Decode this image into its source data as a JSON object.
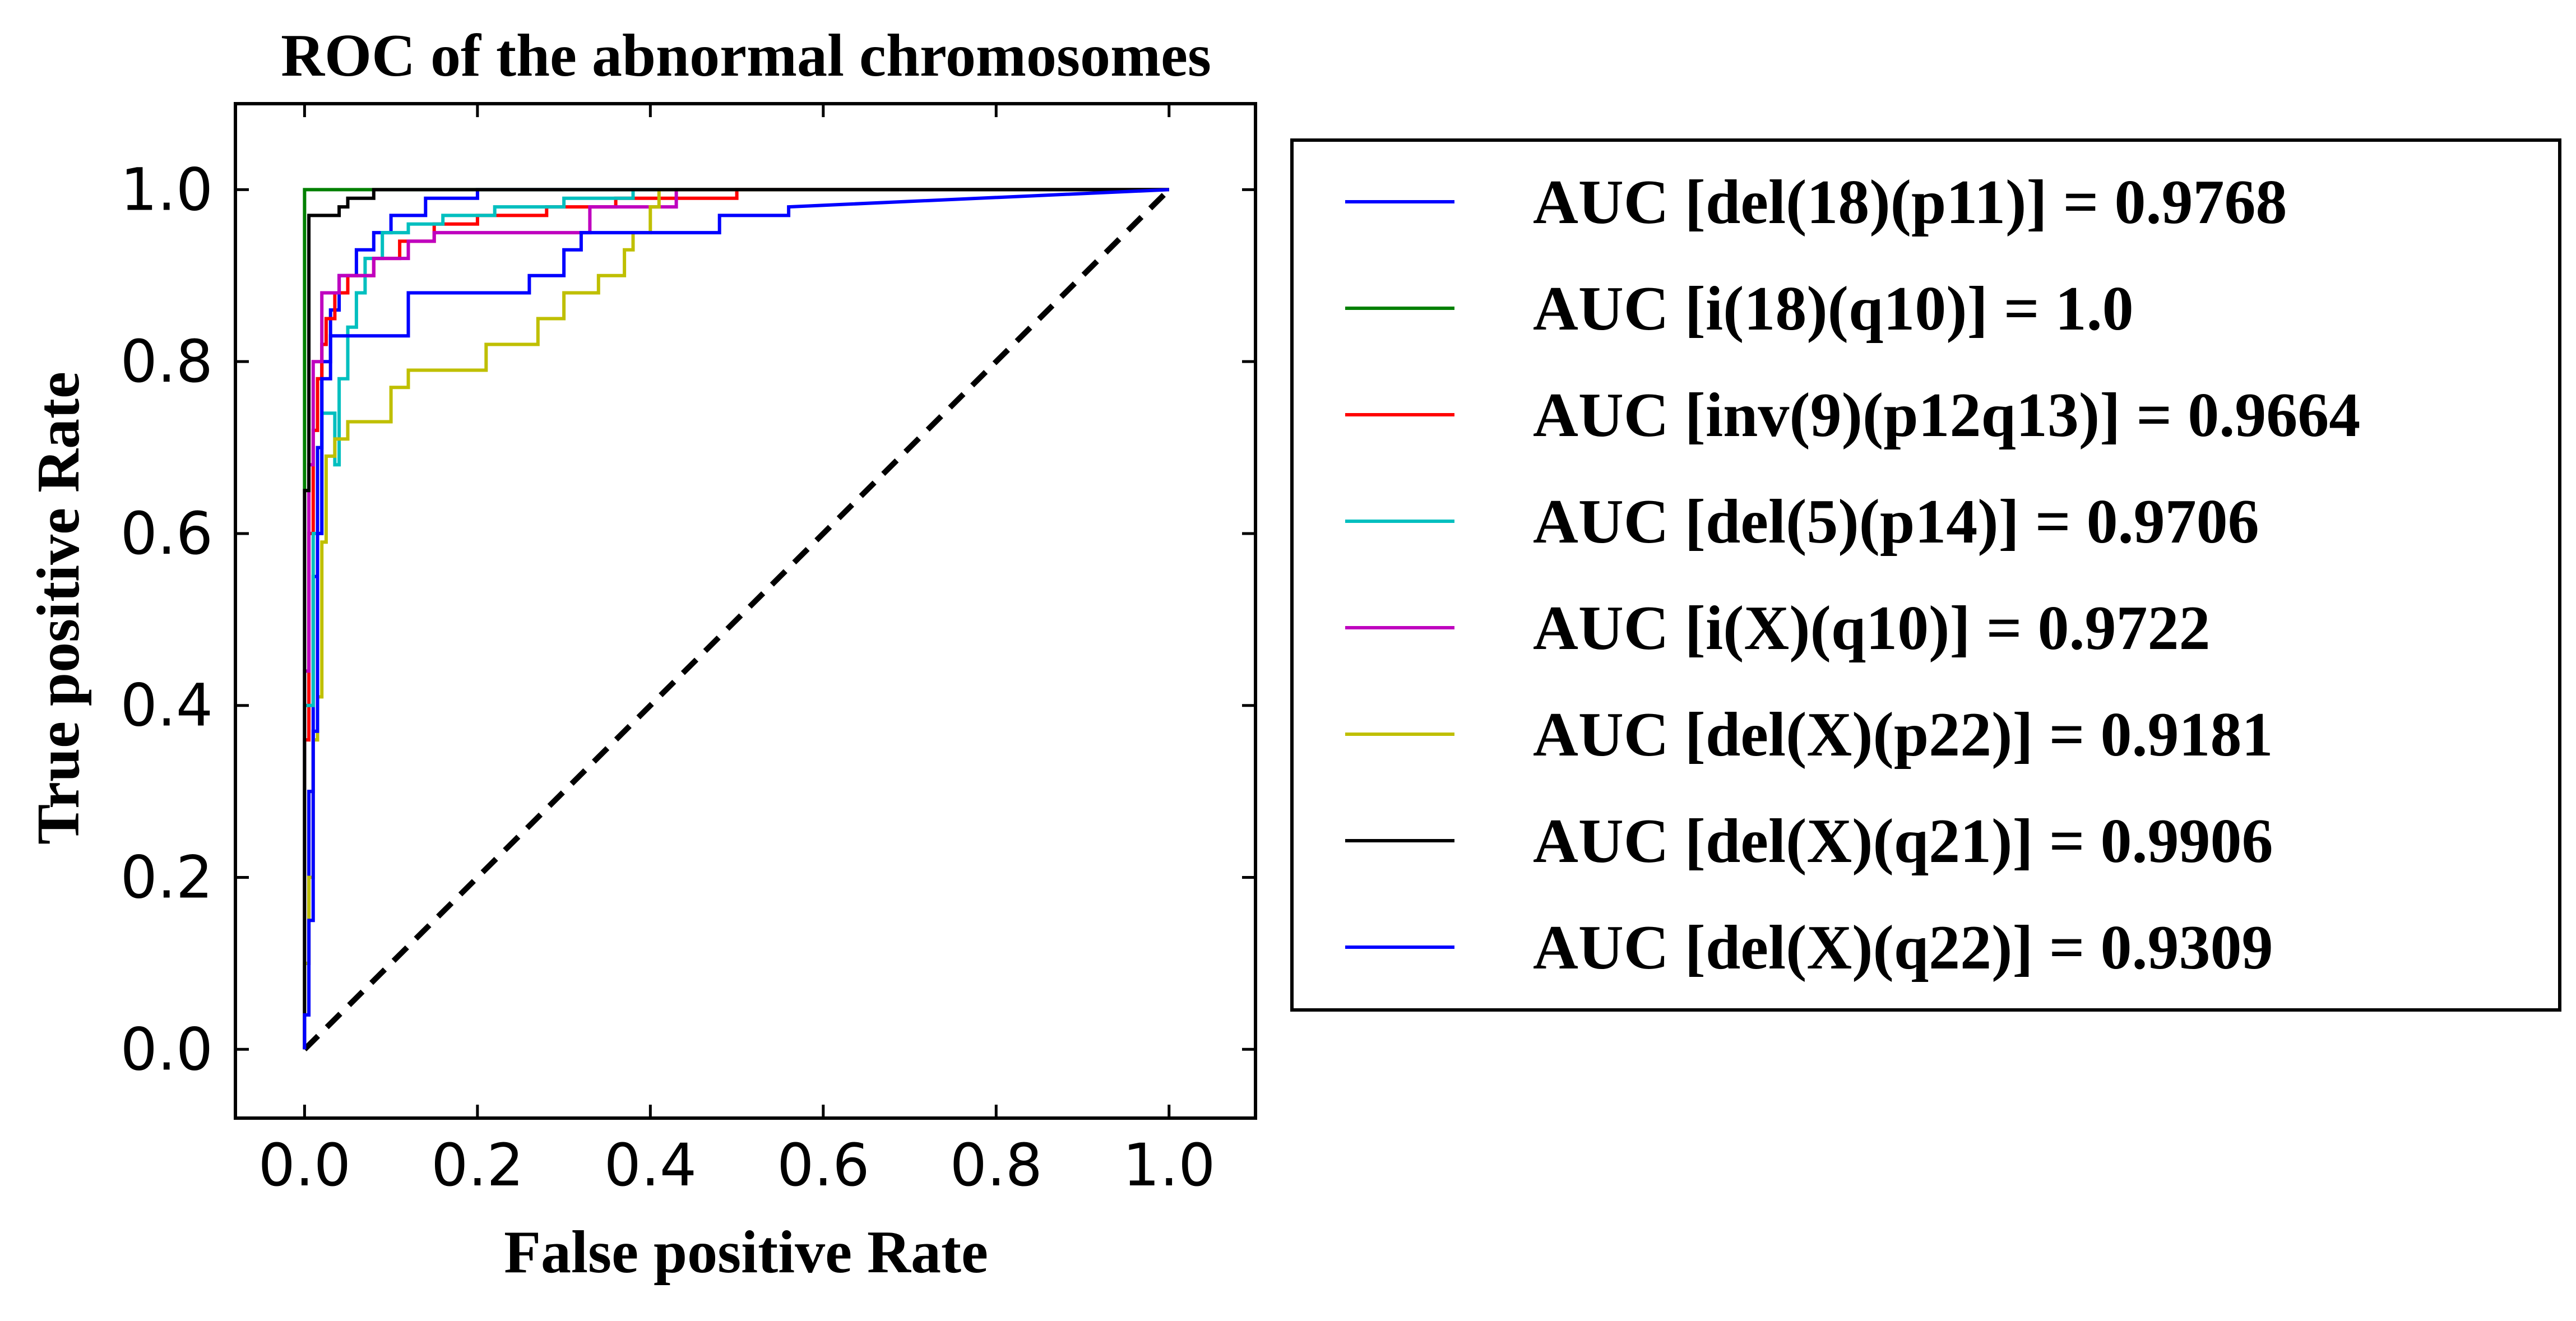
{
  "chart_data": {
    "type": "line",
    "title": "ROC of the abnormal chromosomes",
    "xlabel": "False positive Rate",
    "ylabel": "True positive Rate",
    "xlim": [
      -0.08,
      1.1
    ],
    "ylim": [
      -0.08,
      1.1
    ],
    "xticks": [
      0.0,
      0.2,
      0.4,
      0.6,
      0.8,
      1.0
    ],
    "yticks": [
      0.0,
      0.2,
      0.4,
      0.6,
      0.8,
      1.0
    ],
    "xtick_labels": [
      "0.0",
      "0.2",
      "0.4",
      "0.6",
      "0.8",
      "1.0"
    ],
    "ytick_labels": [
      "0.0",
      "0.2",
      "0.4",
      "0.6",
      "0.8",
      "1.0"
    ],
    "grid": false,
    "legend_position": "outside-right",
    "series": [
      {
        "name": "AUC [del(18)(p11)] = 0.9768",
        "color": "#0000ff",
        "points": [
          [
            0.0,
            0.0
          ],
          [
            0.0,
            0.1
          ],
          [
            0.005,
            0.1
          ],
          [
            0.005,
            0.3
          ],
          [
            0.01,
            0.3
          ],
          [
            0.01,
            0.55
          ],
          [
            0.015,
            0.55
          ],
          [
            0.015,
            0.7
          ],
          [
            0.02,
            0.7
          ],
          [
            0.02,
            0.8
          ],
          [
            0.03,
            0.8
          ],
          [
            0.03,
            0.86
          ],
          [
            0.04,
            0.86
          ],
          [
            0.04,
            0.9
          ],
          [
            0.06,
            0.9
          ],
          [
            0.06,
            0.93
          ],
          [
            0.08,
            0.93
          ],
          [
            0.08,
            0.95
          ],
          [
            0.1,
            0.95
          ],
          [
            0.1,
            0.97
          ],
          [
            0.14,
            0.97
          ],
          [
            0.14,
            0.99
          ],
          [
            0.2,
            0.99
          ],
          [
            0.2,
            1.0
          ],
          [
            1.0,
            1.0
          ]
        ]
      },
      {
        "name": "AUC [i(18)(q10)] = 1.0",
        "color": "#008000",
        "points": [
          [
            0.0,
            0.0
          ],
          [
            0.0,
            1.0
          ],
          [
            1.0,
            1.0
          ]
        ]
      },
      {
        "name": "AUC [inv(9)(p12q13)] = 0.9664",
        "color": "#ff0000",
        "points": [
          [
            0.0,
            0.0
          ],
          [
            0.0,
            0.36
          ],
          [
            0.005,
            0.36
          ],
          [
            0.005,
            0.6
          ],
          [
            0.01,
            0.6
          ],
          [
            0.01,
            0.72
          ],
          [
            0.015,
            0.72
          ],
          [
            0.015,
            0.78
          ],
          [
            0.02,
            0.78
          ],
          [
            0.02,
            0.82
          ],
          [
            0.025,
            0.82
          ],
          [
            0.025,
            0.85
          ],
          [
            0.035,
            0.85
          ],
          [
            0.035,
            0.88
          ],
          [
            0.05,
            0.88
          ],
          [
            0.05,
            0.9
          ],
          [
            0.08,
            0.9
          ],
          [
            0.08,
            0.92
          ],
          [
            0.11,
            0.92
          ],
          [
            0.11,
            0.94
          ],
          [
            0.15,
            0.94
          ],
          [
            0.15,
            0.96
          ],
          [
            0.2,
            0.96
          ],
          [
            0.2,
            0.97
          ],
          [
            0.28,
            0.97
          ],
          [
            0.28,
            0.98
          ],
          [
            0.36,
            0.98
          ],
          [
            0.36,
            0.99
          ],
          [
            0.5,
            0.99
          ],
          [
            0.5,
            1.0
          ],
          [
            1.0,
            1.0
          ]
        ]
      },
      {
        "name": "AUC [del(5)(p14)] = 0.9706",
        "color": "#00bfbf",
        "points": [
          [
            0.0,
            0.0
          ],
          [
            0.0,
            0.4
          ],
          [
            0.01,
            0.4
          ],
          [
            0.01,
            0.6
          ],
          [
            0.02,
            0.6
          ],
          [
            0.02,
            0.74
          ],
          [
            0.035,
            0.74
          ],
          [
            0.035,
            0.68
          ],
          [
            0.04,
            0.68
          ],
          [
            0.04,
            0.78
          ],
          [
            0.05,
            0.78
          ],
          [
            0.05,
            0.84
          ],
          [
            0.06,
            0.84
          ],
          [
            0.06,
            0.88
          ],
          [
            0.07,
            0.88
          ],
          [
            0.07,
            0.92
          ],
          [
            0.09,
            0.92
          ],
          [
            0.09,
            0.95
          ],
          [
            0.12,
            0.95
          ],
          [
            0.12,
            0.96
          ],
          [
            0.16,
            0.96
          ],
          [
            0.16,
            0.97
          ],
          [
            0.22,
            0.97
          ],
          [
            0.22,
            0.98
          ],
          [
            0.3,
            0.98
          ],
          [
            0.3,
            0.99
          ],
          [
            0.38,
            0.99
          ],
          [
            0.38,
            1.0
          ],
          [
            1.0,
            1.0
          ]
        ]
      },
      {
        "name": "AUC [i(X)(q10)] = 0.9722",
        "color": "#bf00bf",
        "points": [
          [
            0.0,
            0.0
          ],
          [
            0.0,
            0.44
          ],
          [
            0.005,
            0.44
          ],
          [
            0.005,
            0.68
          ],
          [
            0.01,
            0.68
          ],
          [
            0.01,
            0.8
          ],
          [
            0.02,
            0.8
          ],
          [
            0.02,
            0.88
          ],
          [
            0.04,
            0.88
          ],
          [
            0.04,
            0.9
          ],
          [
            0.08,
            0.9
          ],
          [
            0.08,
            0.92
          ],
          [
            0.12,
            0.92
          ],
          [
            0.12,
            0.94
          ],
          [
            0.15,
            0.94
          ],
          [
            0.15,
            0.95
          ],
          [
            0.33,
            0.95
          ],
          [
            0.33,
            0.98
          ],
          [
            0.43,
            0.98
          ],
          [
            0.43,
            0.99
          ],
          [
            0.43,
            1.0
          ],
          [
            1.0,
            1.0
          ]
        ]
      },
      {
        "name": "AUC [del(X)(p22)] = 0.9181",
        "color": "#bfbf00",
        "points": [
          [
            0.0,
            0.0
          ],
          [
            0.0,
            0.1
          ],
          [
            0.005,
            0.1
          ],
          [
            0.005,
            0.2
          ],
          [
            0.01,
            0.2
          ],
          [
            0.01,
            0.36
          ],
          [
            0.015,
            0.36
          ],
          [
            0.015,
            0.41
          ],
          [
            0.02,
            0.41
          ],
          [
            0.02,
            0.59
          ],
          [
            0.025,
            0.59
          ],
          [
            0.025,
            0.69
          ],
          [
            0.035,
            0.69
          ],
          [
            0.035,
            0.71
          ],
          [
            0.05,
            0.71
          ],
          [
            0.05,
            0.73
          ],
          [
            0.1,
            0.73
          ],
          [
            0.1,
            0.77
          ],
          [
            0.12,
            0.77
          ],
          [
            0.12,
            0.79
          ],
          [
            0.21,
            0.79
          ],
          [
            0.21,
            0.82
          ],
          [
            0.27,
            0.82
          ],
          [
            0.27,
            0.85
          ],
          [
            0.3,
            0.85
          ],
          [
            0.3,
            0.88
          ],
          [
            0.34,
            0.88
          ],
          [
            0.34,
            0.9
          ],
          [
            0.37,
            0.9
          ],
          [
            0.37,
            0.93
          ],
          [
            0.38,
            0.93
          ],
          [
            0.38,
            0.95
          ],
          [
            0.4,
            0.95
          ],
          [
            0.4,
            0.98
          ],
          [
            0.41,
            0.98
          ],
          [
            0.41,
            1.0
          ],
          [
            1.0,
            1.0
          ]
        ]
      },
      {
        "name": "AUC [del(X)(q21)] = 0.9906",
        "color": "#000000",
        "points": [
          [
            0.0,
            0.0
          ],
          [
            0.0,
            0.65
          ],
          [
            0.005,
            0.65
          ],
          [
            0.005,
            0.97
          ],
          [
            0.04,
            0.97
          ],
          [
            0.04,
            0.98
          ],
          [
            0.05,
            0.98
          ],
          [
            0.05,
            0.99
          ],
          [
            0.08,
            0.99
          ],
          [
            0.08,
            1.0
          ],
          [
            1.0,
            1.0
          ]
        ]
      },
      {
        "name": "AUC [del(X)(q22)] = 0.9309",
        "color": "#0000ff",
        "points": [
          [
            0.0,
            0.0
          ],
          [
            0.0,
            0.04
          ],
          [
            0.005,
            0.04
          ],
          [
            0.005,
            0.15
          ],
          [
            0.01,
            0.15
          ],
          [
            0.01,
            0.37
          ],
          [
            0.015,
            0.37
          ],
          [
            0.015,
            0.6
          ],
          [
            0.02,
            0.6
          ],
          [
            0.02,
            0.78
          ],
          [
            0.03,
            0.78
          ],
          [
            0.03,
            0.83
          ],
          [
            0.12,
            0.83
          ],
          [
            0.12,
            0.88
          ],
          [
            0.26,
            0.88
          ],
          [
            0.26,
            0.9
          ],
          [
            0.3,
            0.9
          ],
          [
            0.3,
            0.93
          ],
          [
            0.32,
            0.93
          ],
          [
            0.32,
            0.95
          ],
          [
            0.48,
            0.95
          ],
          [
            0.48,
            0.97
          ],
          [
            0.56,
            0.97
          ],
          [
            0.56,
            0.98
          ],
          [
            1.0,
            1.0
          ]
        ]
      }
    ],
    "reference_line": {
      "points": [
        [
          0.0,
          0.0
        ],
        [
          1.0,
          1.0
        ]
      ],
      "color": "#000000",
      "style": "dashed"
    }
  }
}
